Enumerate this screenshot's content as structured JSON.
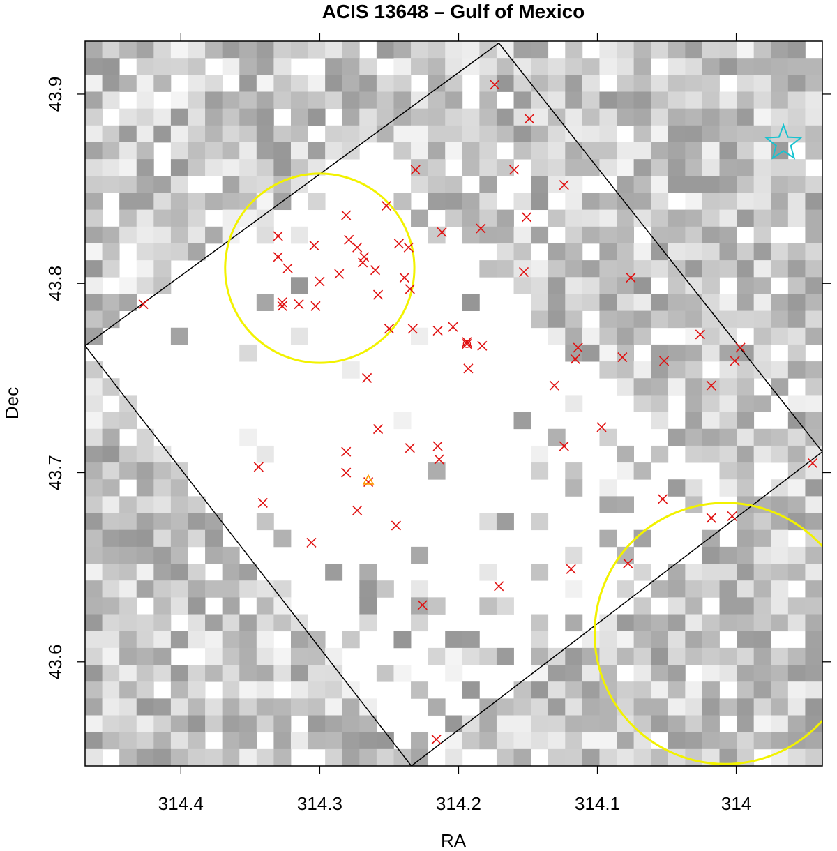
{
  "chart_data": {
    "type": "scatter",
    "title": "ACIS 13648 – Gulf of Mexico",
    "xlabel": "RA",
    "ylabel": "Dec",
    "x_reversed": true,
    "xlim": [
      314.469,
      313.938
    ],
    "ylim": [
      43.545,
      43.928
    ],
    "x_ticks": [
      314.4,
      314.3,
      314.2,
      314.1,
      314.0
    ],
    "x_tick_labels": [
      "314.4",
      "314.3",
      "314.2",
      "314.1",
      "314"
    ],
    "y_ticks": [
      43.6,
      43.7,
      43.8,
      43.9
    ],
    "y_tick_labels": [
      "43.6",
      "43.7",
      "43.8",
      "43.9"
    ],
    "background": {
      "type": "heatmap",
      "colormap": "grayscale",
      "description_cells": 43
    },
    "field_of_view": {
      "name": "ACIS field",
      "color": "#000000",
      "polygon": [
        [
          314.171,
          43.927
        ],
        [
          313.938,
          43.711
        ],
        [
          314.234,
          43.545
        ],
        [
          314.469,
          43.767
        ]
      ]
    },
    "regions": [
      {
        "shape": "circle",
        "color": "#f2f200",
        "center": [
          314.3,
          43.808
        ],
        "radius_dec": 0.05
      },
      {
        "shape": "circle",
        "color": "#f2f200",
        "center": [
          314.008,
          43.615
        ],
        "radius_dec": 0.069
      }
    ],
    "series": [
      {
        "marker": "x",
        "color": "#e01010",
        "points": [
          [
            314.427,
            43.789
          ],
          [
            314.174,
            43.905
          ],
          [
            314.149,
            43.887
          ],
          [
            314.231,
            43.86
          ],
          [
            314.16,
            43.86
          ],
          [
            314.124,
            43.852
          ],
          [
            314.252,
            43.841
          ],
          [
            314.281,
            43.836
          ],
          [
            314.151,
            43.835
          ],
          [
            314.184,
            43.829
          ],
          [
            314.212,
            43.827
          ],
          [
            314.33,
            43.825
          ],
          [
            314.279,
            43.823
          ],
          [
            314.273,
            43.819
          ],
          [
            314.304,
            43.82
          ],
          [
            314.243,
            43.821
          ],
          [
            314.236,
            43.819
          ],
          [
            314.268,
            43.814
          ],
          [
            314.33,
            43.814
          ],
          [
            314.269,
            43.811
          ],
          [
            314.323,
            43.808
          ],
          [
            314.26,
            43.807
          ],
          [
            314.153,
            43.806
          ],
          [
            314.286,
            43.805
          ],
          [
            314.239,
            43.803
          ],
          [
            314.3,
            43.801
          ],
          [
            314.076,
            43.803
          ],
          [
            314.235,
            43.797
          ],
          [
            314.258,
            43.794
          ],
          [
            314.327,
            43.79
          ],
          [
            314.327,
            43.788
          ],
          [
            314.315,
            43.789
          ],
          [
            314.303,
            43.788
          ],
          [
            314.25,
            43.776
          ],
          [
            314.233,
            43.776
          ],
          [
            314.204,
            43.777
          ],
          [
            314.215,
            43.775
          ],
          [
            314.026,
            43.773
          ],
          [
            314.194,
            43.769
          ],
          [
            314.194,
            43.768
          ],
          [
            314.183,
            43.767
          ],
          [
            314.114,
            43.766
          ],
          [
            313.997,
            43.766
          ],
          [
            314.082,
            43.761
          ],
          [
            314.116,
            43.76
          ],
          [
            314.052,
            43.759
          ],
          [
            314.001,
            43.759
          ],
          [
            314.193,
            43.755
          ],
          [
            314.266,
            43.75
          ],
          [
            314.131,
            43.746
          ],
          [
            314.018,
            43.746
          ],
          [
            314.097,
            43.724
          ],
          [
            314.258,
            43.723
          ],
          [
            314.215,
            43.714
          ],
          [
            314.235,
            43.713
          ],
          [
            314.124,
            43.714
          ],
          [
            314.281,
            43.711
          ],
          [
            314.214,
            43.707
          ],
          [
            314.344,
            43.703
          ],
          [
            313.945,
            43.705
          ],
          [
            314.281,
            43.7
          ],
          [
            314.265,
            43.695
          ],
          [
            314.341,
            43.684
          ],
          [
            314.053,
            43.686
          ],
          [
            314.273,
            43.68
          ],
          [
            314.018,
            43.676
          ],
          [
            314.003,
            43.677
          ],
          [
            314.245,
            43.672
          ],
          [
            314.306,
            43.663
          ],
          [
            314.078,
            43.652
          ],
          [
            314.119,
            43.649
          ],
          [
            314.171,
            43.64
          ],
          [
            314.226,
            43.63
          ],
          [
            314.216,
            43.559
          ]
        ]
      },
      {
        "marker": "circle",
        "color": "#e01010",
        "points": [
          [
            314.194,
            43.768
          ]
        ]
      },
      {
        "marker": "triangle",
        "color": "#ff9900",
        "points": [
          [
            314.265,
            43.696
          ]
        ]
      },
      {
        "marker": "star",
        "color": "#17c3d0",
        "points": [
          [
            313.966,
            43.874
          ]
        ]
      }
    ]
  }
}
